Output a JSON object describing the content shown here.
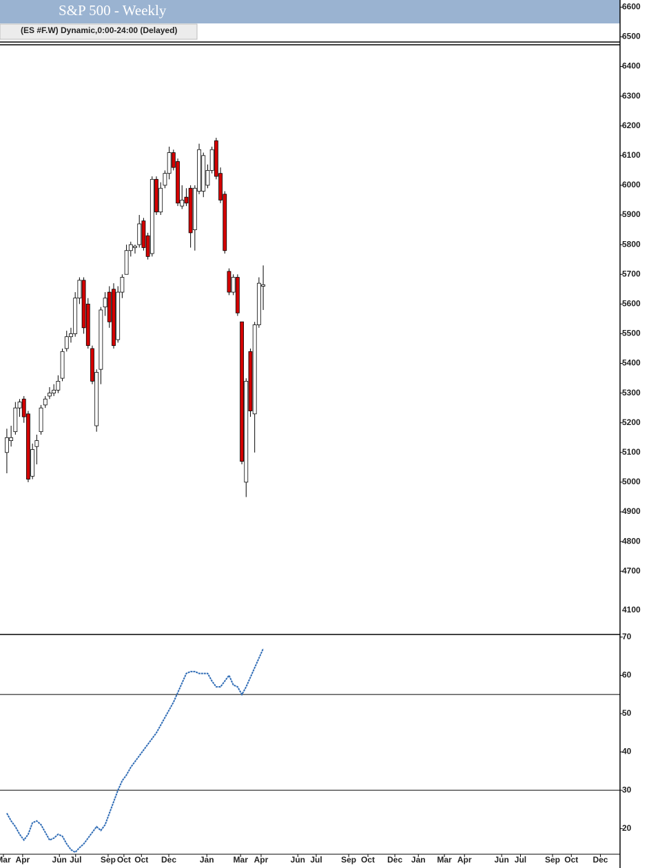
{
  "chart_data": [
    {
      "type": "candlestick",
      "title": "S&P 500 - Weekly",
      "subtitle": "(ES #F.W) Dynamic,0:00-24:00 (Delayed)",
      "xlim": [
        -1.6,
        143.5
      ],
      "ylim": [
        4494,
        6624
      ],
      "yticks": [
        4700,
        4800,
        4900,
        5000,
        5100,
        5200,
        5300,
        5400,
        5500,
        5600,
        5700,
        5800,
        5900,
        6000,
        6100,
        6200,
        6300,
        6400,
        6500,
        6600
      ],
      "axis_note": "4100",
      "up_color": "#ffffff",
      "down_color": "#d40000",
      "x": [
        0,
        1,
        2,
        3,
        4,
        5,
        6,
        7,
        8,
        9,
        10,
        11,
        12,
        13,
        14,
        15,
        16,
        17,
        18,
        19,
        20,
        21,
        22,
        23,
        24,
        25,
        26,
        27,
        28,
        29,
        30,
        31,
        32,
        33,
        34,
        35,
        36,
        37,
        38,
        39,
        40,
        41,
        42,
        43,
        44,
        45,
        46,
        47,
        48,
        49,
        50,
        51,
        52,
        53,
        54,
        55,
        56,
        57,
        58,
        59,
        60
      ],
      "open": [
        5100,
        5140,
        5170,
        5250,
        5280,
        5230,
        5020,
        5120,
        5170,
        5260,
        5290,
        5300,
        5310,
        5350,
        5450,
        5490,
        5500,
        5620,
        5680,
        5600,
        5450,
        5190,
        5380,
        5590,
        5640,
        5650,
        5480,
        5640,
        5700,
        5780,
        5790,
        5800,
        5880,
        5830,
        5770,
        6020,
        5910,
        6000,
        6040,
        6110,
        6080,
        5930,
        5960,
        5990,
        5850,
        5980,
        5980,
        6000,
        6050,
        6150,
        6040,
        5970,
        5710,
        5640,
        5690,
        5540,
        5000,
        5440,
        5230,
        5530,
        5660
      ],
      "high": [
        5180,
        5190,
        5270,
        5280,
        5290,
        5240,
        5130,
        5160,
        5260,
        5290,
        5320,
        5330,
        5360,
        5450,
        5510,
        5520,
        5640,
        5690,
        5690,
        5620,
        5460,
        5380,
        5590,
        5640,
        5660,
        5670,
        5660,
        5700,
        5800,
        5810,
        5800,
        5900,
        5890,
        5840,
        6030,
        6030,
        6010,
        6050,
        6130,
        6120,
        6090,
        6000,
        5990,
        6000,
        6000,
        6140,
        6110,
        6070,
        6130,
        6160,
        6060,
        5980,
        5720,
        5700,
        5700,
        5540,
        5350,
        5450,
        5540,
        5690,
        5730
      ],
      "low": [
        5030,
        5120,
        5160,
        5220,
        5200,
        5000,
        5010,
        5060,
        5160,
        5250,
        5280,
        5290,
        5300,
        5340,
        5440,
        5470,
        5490,
        5600,
        5500,
        5450,
        5330,
        5170,
        5330,
        5560,
        5520,
        5450,
        5470,
        5620,
        5700,
        5760,
        5770,
        5790,
        5780,
        5750,
        5760,
        5900,
        5900,
        5990,
        6020,
        6050,
        5930,
        5920,
        5930,
        5790,
        5780,
        5970,
        5960,
        5990,
        6040,
        6020,
        5940,
        5770,
        5630,
        5630,
        5560,
        5060,
        4950,
        5220,
        5100,
        5520,
        5580
      ],
      "close": [
        5150,
        5150,
        5250,
        5270,
        5220,
        5010,
        5110,
        5140,
        5250,
        5280,
        5300,
        5310,
        5340,
        5440,
        5490,
        5500,
        5620,
        5680,
        5520,
        5460,
        5340,
        5370,
        5580,
        5620,
        5540,
        5460,
        5640,
        5690,
        5780,
        5800,
        5795,
        5870,
        5790,
        5760,
        6020,
        5910,
        5990,
        6040,
        6110,
        6060,
        5940,
        5950,
        5940,
        5840,
        5990,
        6120,
        6100,
        6050,
        6120,
        6030,
        5950,
        5780,
        5640,
        5690,
        5570,
        5070,
        5340,
        5240,
        5530,
        5670,
        5665
      ]
    },
    {
      "type": "line",
      "xlim": [
        -1.6,
        143.5
      ],
      "ylim": [
        13.3,
        70.5
      ],
      "yticks": [
        20,
        30,
        40,
        50,
        60,
        70
      ],
      "hlines": [
        55,
        30
      ],
      "xticks": [
        {
          "value": -0.8,
          "label": "Mar"
        },
        {
          "value": 3.7,
          "label": "Apr"
        },
        {
          "value": 12.3,
          "label": "Jun"
        },
        {
          "value": 16.1,
          "label": "Jul"
        },
        {
          "value": 23.7,
          "label": "Sep"
        },
        {
          "value": 27.4,
          "label": "Oct"
        },
        {
          "value": 31.5,
          "label": "Oct"
        },
        {
          "value": 37.9,
          "label": "Dec"
        },
        {
          "value": 46.8,
          "label": "Jan"
        },
        {
          "value": 54.7,
          "label": "Mar"
        },
        {
          "value": 59.5,
          "label": "Apr"
        },
        {
          "value": 68.1,
          "label": "Jun"
        },
        {
          "value": 72.4,
          "label": "Jul"
        },
        {
          "value": 80.0,
          "label": "Sep"
        },
        {
          "value": 84.5,
          "label": "Oct"
        },
        {
          "value": 90.8,
          "label": "Dec"
        },
        {
          "value": 96.3,
          "label": "Jan"
        },
        {
          "value": 102.4,
          "label": "Mar"
        },
        {
          "value": 107.1,
          "label": "Apr"
        },
        {
          "value": 115.8,
          "label": "Jun"
        },
        {
          "value": 120.2,
          "label": "Jul"
        },
        {
          "value": 127.7,
          "label": "Sep"
        },
        {
          "value": 132.1,
          "label": "Oct"
        },
        {
          "value": 138.9,
          "label": "Dec"
        }
      ],
      "color": "#2e6bb5",
      "x": [
        0,
        1,
        2,
        3,
        4,
        5,
        6,
        7,
        8,
        9,
        10,
        11,
        12,
        13,
        14,
        15,
        16,
        17,
        18,
        19,
        20,
        21,
        22,
        23,
        24,
        25,
        26,
        27,
        28,
        29,
        30,
        31,
        32,
        33,
        34,
        35,
        36,
        37,
        38,
        39,
        40,
        41,
        42,
        43,
        44,
        45,
        46,
        47,
        48,
        49,
        50,
        51,
        52,
        53,
        54,
        55,
        56,
        57,
        58,
        59,
        60
      ],
      "values": [
        24,
        22,
        20.5,
        18.5,
        17,
        18.5,
        21.5,
        22,
        21,
        19,
        17,
        17.5,
        18.5,
        18,
        16,
        14.5,
        13.8,
        15,
        16,
        17.5,
        19,
        20.5,
        19.5,
        21,
        24,
        27,
        30,
        32.5,
        34,
        36,
        37.5,
        39,
        40.5,
        42,
        43.5,
        45,
        47,
        49,
        51,
        53,
        55.5,
        58,
        60.5,
        61,
        61,
        60.5,
        60.5,
        60.5,
        58.5,
        57,
        57,
        58.5,
        60,
        57.5,
        57,
        55,
        57,
        59.5,
        62,
        64.5,
        67
      ]
    }
  ]
}
